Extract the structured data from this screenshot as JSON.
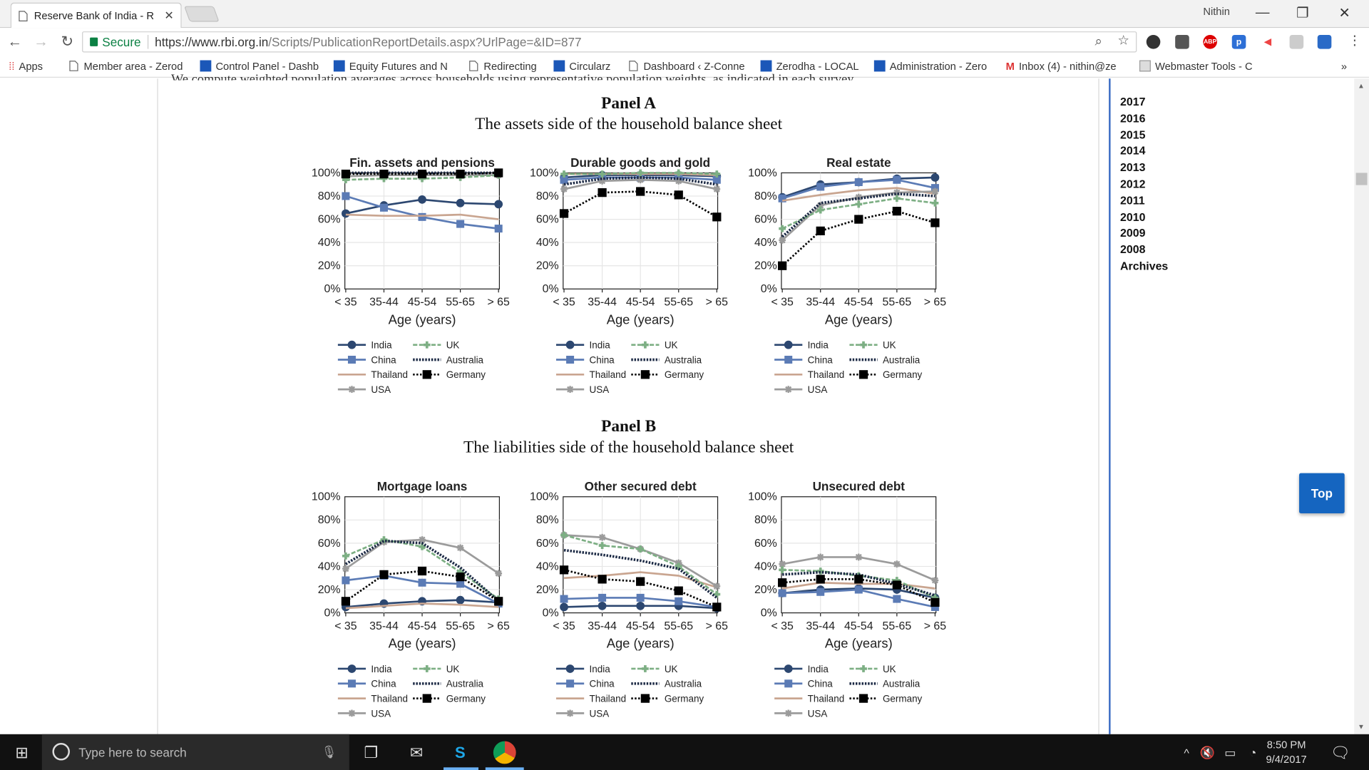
{
  "browser": {
    "tab_title": "Reserve Bank of India - R",
    "user_name": "Nithin",
    "secure_label": "Secure",
    "url_host": "https://www.rbi.org.in",
    "url_path": "/Scripts/PublicationReportDetails.aspx?UrlPage=&ID=877",
    "bookmarks": [
      "Apps",
      "Member area - Zerod",
      "Control Panel - Dashb",
      "Equity Futures and N",
      "Redirecting",
      "Circularz",
      "Dashboard ‹ Z-Conne",
      "Zerodha - LOCAL",
      "Administration - Zero",
      "Inbox (4) - nithin@ze",
      "Webmaster Tools - C"
    ],
    "more_bookmarks": "»"
  },
  "page": {
    "cut_text": "We compute weighted population averages across households using representative population weights, as indicated in each survey.",
    "panel_a_title": "Panel A",
    "panel_a_subtitle": "The assets side of the household balance sheet",
    "panel_b_title": "Panel B",
    "panel_b_subtitle": "The liabilities side of the household balance sheet",
    "sidebar_years": [
      "2017",
      "2016",
      "2015",
      "2014",
      "2013",
      "2012",
      "2011",
      "2010",
      "2009",
      "2008",
      "Archives"
    ],
    "top_button": "Top"
  },
  "taskbar": {
    "search_placeholder": "Type here to search",
    "time": "8:50 PM",
    "date": "9/4/2017"
  },
  "colors": {
    "India": "#2c4770",
    "China": "#5b7bb5",
    "Thailand": "#c9a590",
    "USA": "#9b9b9b",
    "UK": "#7daf84",
    "Australia": "#1c2a45",
    "Germany": "#000000"
  },
  "chart_data": [
    {
      "type": "line",
      "title": "Fin. assets and pensions",
      "xlabel": "Age (years)",
      "ylabel": "",
      "ylim": [
        0,
        100
      ],
      "categories": [
        "< 35",
        "35-44",
        "45-54",
        "55-65",
        "> 65"
      ],
      "yticks": [
        "0%",
        "20%",
        "40%",
        "60%",
        "80%",
        "100%"
      ],
      "series": [
        {
          "name": "India",
          "values": [
            65,
            72,
            77,
            74,
            73
          ]
        },
        {
          "name": "China",
          "values": [
            80,
            70,
            62,
            56,
            52
          ]
        },
        {
          "name": "Thailand",
          "values": [
            64,
            63,
            63,
            64,
            60
          ]
        },
        {
          "name": "USA",
          "values": [
            97,
            98,
            98,
            98,
            98
          ]
        },
        {
          "name": "UK",
          "values": [
            94,
            95,
            95,
            96,
            98
          ]
        },
        {
          "name": "Australia",
          "values": [
            100,
            100,
            100,
            100,
            100
          ]
        },
        {
          "name": "Germany",
          "values": [
            99,
            99,
            99,
            99,
            100
          ]
        }
      ]
    },
    {
      "type": "line",
      "title": "Durable goods and gold",
      "xlabel": "Age (years)",
      "ylabel": "",
      "ylim": [
        0,
        100
      ],
      "categories": [
        "< 35",
        "35-44",
        "45-54",
        "55-65",
        "> 65"
      ],
      "yticks": [
        "0%",
        "20%",
        "40%",
        "60%",
        "80%",
        "100%"
      ],
      "series": [
        {
          "name": "India",
          "values": [
            96,
            98,
            98,
            98,
            97
          ]
        },
        {
          "name": "China",
          "values": [
            94,
            96,
            96,
            96,
            94
          ]
        },
        {
          "name": "Thailand",
          "values": [
            99,
            99,
            99,
            99,
            98
          ]
        },
        {
          "name": "USA",
          "values": [
            86,
            93,
            94,
            93,
            86
          ]
        },
        {
          "name": "UK",
          "values": [
            99,
            99,
            100,
            100,
            99
          ]
        },
        {
          "name": "Australia",
          "values": [
            90,
            95,
            96,
            95,
            90
          ]
        },
        {
          "name": "Germany",
          "values": [
            65,
            83,
            84,
            81,
            62
          ]
        }
      ]
    },
    {
      "type": "line",
      "title": "Real estate",
      "xlabel": "Age (years)",
      "ylabel": "",
      "ylim": [
        0,
        100
      ],
      "categories": [
        "< 35",
        "35-44",
        "45-54",
        "55-65",
        "> 65"
      ],
      "yticks": [
        "0%",
        "20%",
        "40%",
        "60%",
        "80%",
        "100%"
      ],
      "series": [
        {
          "name": "India",
          "values": [
            79,
            90,
            92,
            95,
            96
          ]
        },
        {
          "name": "China",
          "values": [
            78,
            88,
            92,
            94,
            87
          ]
        },
        {
          "name": "Thailand",
          "values": [
            76,
            81,
            85,
            87,
            82
          ]
        },
        {
          "name": "USA",
          "values": [
            42,
            72,
            79,
            83,
            84
          ]
        },
        {
          "name": "UK",
          "values": [
            52,
            68,
            73,
            78,
            74
          ]
        },
        {
          "name": "Australia",
          "values": [
            45,
            74,
            78,
            82,
            80
          ]
        },
        {
          "name": "Germany",
          "values": [
            20,
            50,
            60,
            67,
            57
          ]
        }
      ]
    },
    {
      "type": "line",
      "title": "Mortgage loans",
      "xlabel": "Age (years)",
      "ylabel": "",
      "ylim": [
        0,
        100
      ],
      "categories": [
        "< 35",
        "35-44",
        "45-54",
        "55-65",
        "> 65"
      ],
      "yticks": [
        "0%",
        "20%",
        "40%",
        "60%",
        "80%",
        "100%"
      ],
      "series": [
        {
          "name": "India",
          "values": [
            5,
            8,
            10,
            11,
            9
          ]
        },
        {
          "name": "China",
          "values": [
            28,
            32,
            26,
            25,
            8
          ]
        },
        {
          "name": "Thailand",
          "values": [
            4,
            6,
            8,
            7,
            5
          ]
        },
        {
          "name": "USA",
          "values": [
            38,
            61,
            63,
            56,
            34
          ]
        },
        {
          "name": "UK",
          "values": [
            49,
            63,
            57,
            35,
            12
          ]
        },
        {
          "name": "Australia",
          "values": [
            42,
            62,
            60,
            39,
            10
          ]
        },
        {
          "name": "Germany",
          "values": [
            10,
            33,
            36,
            31,
            10
          ]
        }
      ]
    },
    {
      "type": "line",
      "title": "Other secured debt",
      "xlabel": "Age (years)",
      "ylabel": "",
      "ylim": [
        0,
        100
      ],
      "categories": [
        "< 35",
        "35-44",
        "45-54",
        "55-65",
        "> 65"
      ],
      "yticks": [
        "0%",
        "20%",
        "40%",
        "60%",
        "80%",
        "100%"
      ],
      "series": [
        {
          "name": "India",
          "values": [
            5,
            6,
            6,
            6,
            4
          ]
        },
        {
          "name": "China",
          "values": [
            12,
            13,
            13,
            10,
            5
          ]
        },
        {
          "name": "Thailand",
          "values": [
            30,
            32,
            35,
            32,
            22
          ]
        },
        {
          "name": "USA",
          "values": [
            67,
            65,
            55,
            43,
            23
          ]
        },
        {
          "name": "UK",
          "values": [
            67,
            58,
            55,
            40,
            16
          ]
        },
        {
          "name": "Australia",
          "values": [
            54,
            50,
            45,
            38,
            13
          ]
        },
        {
          "name": "Germany",
          "values": [
            37,
            29,
            27,
            19,
            5
          ]
        }
      ]
    },
    {
      "type": "line",
      "title": "Unsecured debt",
      "xlabel": "Age (years)",
      "ylabel": "",
      "ylim": [
        0,
        100
      ],
      "categories": [
        "< 35",
        "35-44",
        "45-54",
        "55-65",
        "> 65"
      ],
      "yticks": [
        "0%",
        "20%",
        "40%",
        "60%",
        "80%",
        "100%"
      ],
      "series": [
        {
          "name": "India",
          "values": [
            17,
            20,
            21,
            20,
            13
          ]
        },
        {
          "name": "China",
          "values": [
            17,
            18,
            20,
            12,
            5
          ]
        },
        {
          "name": "Thailand",
          "values": [
            21,
            26,
            25,
            25,
            21
          ]
        },
        {
          "name": "USA",
          "values": [
            42,
            48,
            48,
            42,
            28
          ]
        },
        {
          "name": "UK",
          "values": [
            37,
            36,
            32,
            28,
            13
          ]
        },
        {
          "name": "Australia",
          "values": [
            33,
            35,
            33,
            25,
            15
          ]
        },
        {
          "name": "Germany",
          "values": [
            26,
            29,
            29,
            24,
            9
          ]
        }
      ]
    }
  ]
}
